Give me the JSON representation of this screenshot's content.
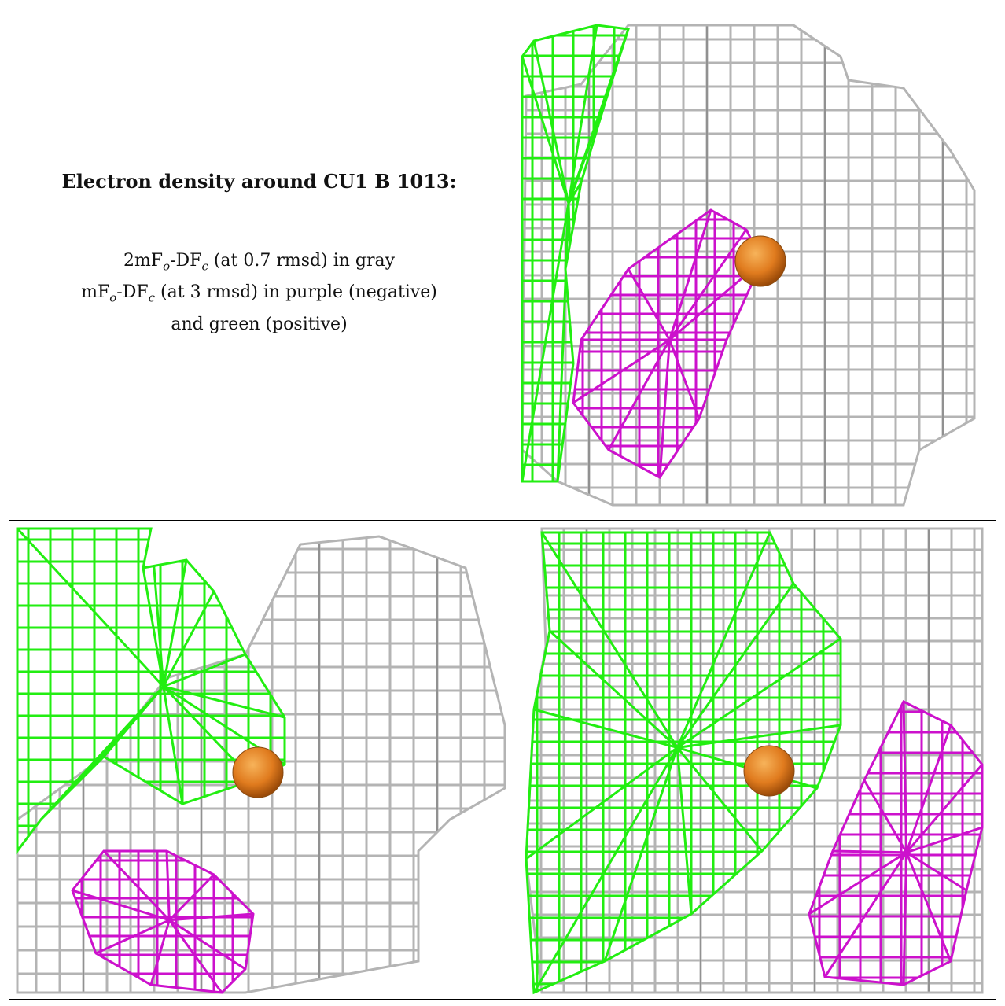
{
  "caption": {
    "title": "Electron density around CU1 B 1013:",
    "line1": {
      "prefix": "2mF",
      "s1": "o",
      "mid": "-DF",
      "s2": "c",
      "suffix": " (at 0.7 rmsd) in gray"
    },
    "line2": {
      "prefix": "mF",
      "s1": "o",
      "mid": "-DF",
      "s2": "c",
      "suffix": " (at 3 rmsd) in purple (negative)"
    },
    "line3": "and green (positive)"
  },
  "colors": {
    "gray_map": "#b4b4b4",
    "gray_dark": "#6e6e6e",
    "positive": "#22ee11",
    "negative": "#cc11cc",
    "copper": "#e07b1e",
    "border": "#000000"
  },
  "panels": [
    {
      "name": "view-top-right",
      "contour_2fofc_rmsd": "0.7",
      "contour_fofc_rmsd": "3"
    },
    {
      "name": "view-bottom-left",
      "contour_2fofc_rmsd": "0.7",
      "contour_fofc_rmsd": "3"
    },
    {
      "name": "view-bottom-right",
      "contour_2fofc_rmsd": "0.7",
      "contour_fofc_rmsd": "3"
    }
  ]
}
